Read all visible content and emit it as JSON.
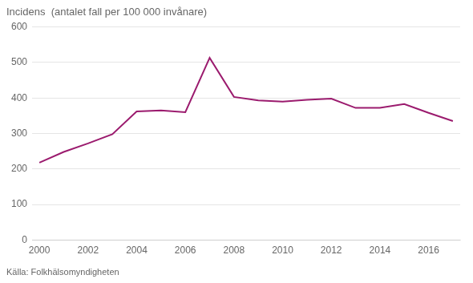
{
  "chart_data": {
    "type": "line",
    "title": "Incidens  (antalet fall per 100 000 invånare)",
    "x": [
      2000,
      2001,
      2002,
      2003,
      2004,
      2005,
      2006,
      2007,
      2008,
      2009,
      2010,
      2011,
      2012,
      2013,
      2014,
      2015,
      2016,
      2017
    ],
    "values": [
      218,
      248,
      272,
      298,
      362,
      365,
      360,
      513,
      403,
      393,
      390,
      395,
      398,
      372,
      372,
      383,
      358,
      335
    ],
    "color": "#9B1B6E",
    "xlim": [
      1999.7,
      2017.3
    ],
    "xticks": [
      2000,
      2002,
      2004,
      2006,
      2008,
      2010,
      2012,
      2014,
      2016
    ],
    "ylim": [
      0,
      600
    ],
    "yticks": [
      0,
      100,
      200,
      300,
      400,
      500,
      600
    ],
    "grid": "y",
    "annotations": [
      "Källa: Folkhälsomyndigheten"
    ]
  }
}
